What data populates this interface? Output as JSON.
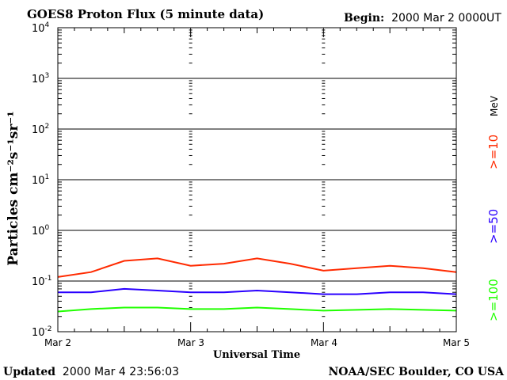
{
  "chart_data": {
    "type": "line",
    "title": "GOES8 Proton Flux (5 minute data)",
    "begin_label": "Begin:",
    "begin_value": "2000 Mar 2 0000UT",
    "xlabel": "Universal Time",
    "ylabel": "Particles cm⁻²s⁻¹sr⁻¹",
    "x_ticks": [
      "Mar 2",
      "Mar 3",
      "Mar 4",
      "Mar 5"
    ],
    "y_scale": "log",
    "ylim": [
      0.01,
      10000
    ],
    "y_ticks": [
      {
        "base": "10",
        "exp": "-2"
      },
      {
        "base": "10",
        "exp": "-1"
      },
      {
        "base": "10",
        "exp": "0"
      },
      {
        "base": "10",
        "exp": "1"
      },
      {
        "base": "10",
        "exp": "2"
      },
      {
        "base": "10",
        "exp": "3"
      },
      {
        "base": "10",
        "exp": "4"
      }
    ],
    "grid": true,
    "energy_unit": "MeV",
    "legend_placement": "right, vertical",
    "series": [
      {
        "name": ">=10",
        "color": "#ff2a00",
        "x": [
          0,
          0.25,
          0.5,
          0.75,
          1.0,
          1.25,
          1.5,
          1.75,
          2.0,
          2.25,
          2.5,
          2.75,
          3.0
        ],
        "y": [
          0.12,
          0.15,
          0.25,
          0.28,
          0.2,
          0.22,
          0.28,
          0.22,
          0.16,
          0.18,
          0.2,
          0.18,
          0.15
        ]
      },
      {
        "name": ">=50",
        "color": "#2a00ff",
        "x": [
          0,
          0.25,
          0.5,
          0.75,
          1.0,
          1.25,
          1.5,
          1.75,
          2.0,
          2.25,
          2.5,
          2.75,
          3.0
        ],
        "y": [
          0.06,
          0.06,
          0.07,
          0.065,
          0.06,
          0.06,
          0.065,
          0.06,
          0.055,
          0.055,
          0.06,
          0.06,
          0.055
        ]
      },
      {
        "name": ">=100",
        "color": "#20ff00",
        "x": [
          0,
          0.25,
          0.5,
          0.75,
          1.0,
          1.25,
          1.5,
          1.75,
          2.0,
          2.25,
          2.5,
          2.75,
          3.0
        ],
        "y": [
          0.025,
          0.028,
          0.03,
          0.03,
          0.028,
          0.028,
          0.03,
          0.028,
          0.026,
          0.027,
          0.028,
          0.027,
          0.026
        ]
      }
    ]
  },
  "footer": {
    "updated_label": "Updated",
    "updated_value": "2000 Mar  4 23:56:03",
    "source": "NOAA/SEC Boulder, CO USA"
  }
}
